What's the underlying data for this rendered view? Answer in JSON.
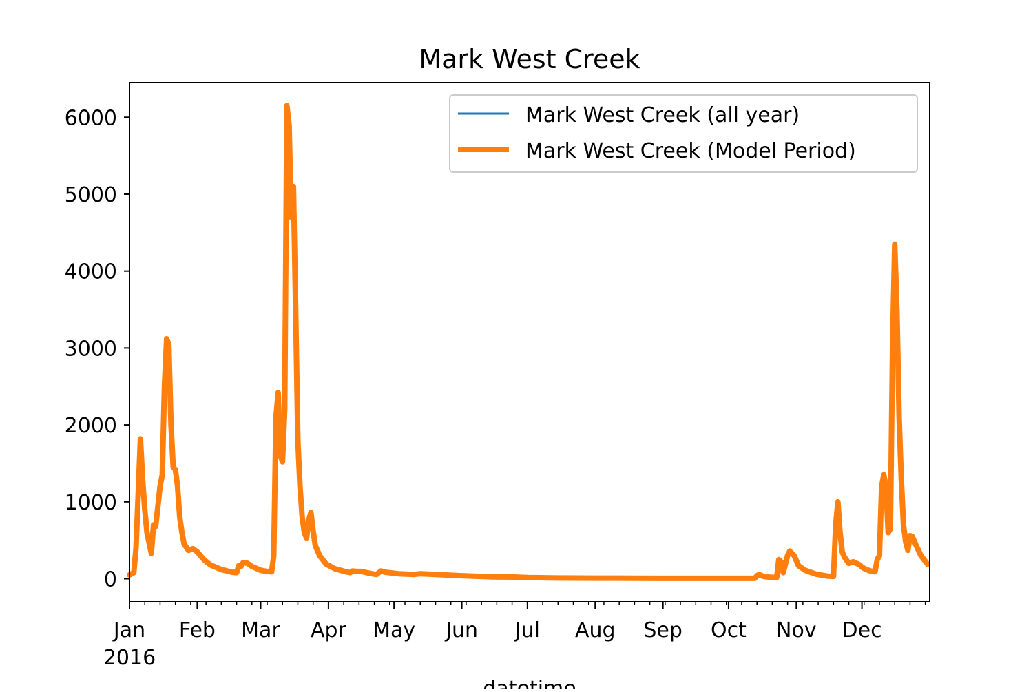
{
  "chart_data": {
    "type": "line",
    "title": "Mark West Creek",
    "xlabel": "datetime",
    "ylabel": "",
    "x_range": [
      "2016-01-01",
      "2016-12-31"
    ],
    "ylim": [
      -300,
      6450
    ],
    "yticks": [
      0,
      1000,
      2000,
      3000,
      4000,
      5000,
      6000
    ],
    "xticks": [
      {
        "date": "2016-01-01",
        "label": "Jan",
        "sublabel": "2016"
      },
      {
        "date": "2016-02-01",
        "label": "Feb"
      },
      {
        "date": "2016-03-01",
        "label": "Mar"
      },
      {
        "date": "2016-04-01",
        "label": "Apr"
      },
      {
        "date": "2016-05-01",
        "label": "May"
      },
      {
        "date": "2016-06-01",
        "label": "Jun"
      },
      {
        "date": "2016-07-01",
        "label": "Jul"
      },
      {
        "date": "2016-08-01",
        "label": "Aug"
      },
      {
        "date": "2016-09-01",
        "label": "Sep"
      },
      {
        "date": "2016-10-01",
        "label": "Oct"
      },
      {
        "date": "2016-11-01",
        "label": "Nov"
      },
      {
        "date": "2016-12-01",
        "label": "Dec"
      }
    ],
    "legend_position": "upper right",
    "series": [
      {
        "name": "Mark West Creek (all year)",
        "color": "#1f77b4",
        "points": [
          [
            "2016-01-01",
            50
          ],
          [
            "2016-01-03",
            80
          ],
          [
            "2016-01-04",
            400
          ],
          [
            "2016-01-06",
            1820
          ],
          [
            "2016-01-07",
            1300
          ],
          [
            "2016-01-08",
            900
          ],
          [
            "2016-01-09",
            600
          ],
          [
            "2016-01-11",
            330
          ],
          [
            "2016-01-12",
            700
          ],
          [
            "2016-01-13",
            680
          ],
          [
            "2016-01-15",
            1200
          ],
          [
            "2016-01-16",
            1350
          ],
          [
            "2016-01-17",
            2500
          ],
          [
            "2016-01-18",
            3120
          ],
          [
            "2016-01-19",
            3050
          ],
          [
            "2016-01-20",
            2000
          ],
          [
            "2016-01-21",
            1450
          ],
          [
            "2016-01-22",
            1420
          ],
          [
            "2016-01-23",
            1200
          ],
          [
            "2016-01-24",
            800
          ],
          [
            "2016-01-25",
            600
          ],
          [
            "2016-01-26",
            450
          ],
          [
            "2016-01-28",
            370
          ],
          [
            "2016-01-30",
            390
          ],
          [
            "2016-02-01",
            350
          ],
          [
            "2016-02-04",
            250
          ],
          [
            "2016-02-07",
            180
          ],
          [
            "2016-02-12",
            120
          ],
          [
            "2016-02-17",
            85
          ],
          [
            "2016-02-19",
            80
          ],
          [
            "2016-02-20",
            170
          ],
          [
            "2016-02-21",
            160
          ],
          [
            "2016-02-22",
            210
          ],
          [
            "2016-02-24",
            200
          ],
          [
            "2016-02-26",
            160
          ],
          [
            "2016-03-01",
            110
          ],
          [
            "2016-03-04",
            95
          ],
          [
            "2016-03-06",
            90
          ],
          [
            "2016-03-07",
            300
          ],
          [
            "2016-03-08",
            2100
          ],
          [
            "2016-03-09",
            2420
          ],
          [
            "2016-03-10",
            1600
          ],
          [
            "2016-03-11",
            1520
          ],
          [
            "2016-03-12",
            2200
          ],
          [
            "2016-03-13",
            6150
          ],
          [
            "2016-03-14",
            5900
          ],
          [
            "2016-03-15",
            4700
          ],
          [
            "2016-03-16",
            5100
          ],
          [
            "2016-03-17",
            3500
          ],
          [
            "2016-03-18",
            1800
          ],
          [
            "2016-03-19",
            1200
          ],
          [
            "2016-03-20",
            800
          ],
          [
            "2016-03-21",
            600
          ],
          [
            "2016-03-22",
            530
          ],
          [
            "2016-03-23",
            760
          ],
          [
            "2016-03-24",
            860
          ],
          [
            "2016-03-25",
            620
          ],
          [
            "2016-03-26",
            430
          ],
          [
            "2016-03-28",
            300
          ],
          [
            "2016-03-31",
            190
          ],
          [
            "2016-04-04",
            130
          ],
          [
            "2016-04-09",
            90
          ],
          [
            "2016-04-11",
            80
          ],
          [
            "2016-04-12",
            100
          ],
          [
            "2016-04-14",
            95
          ],
          [
            "2016-04-16",
            95
          ],
          [
            "2016-04-20",
            70
          ],
          [
            "2016-04-23",
            55
          ],
          [
            "2016-04-25",
            100
          ],
          [
            "2016-04-27",
            85
          ],
          [
            "2016-05-03",
            65
          ],
          [
            "2016-05-10",
            55
          ],
          [
            "2016-05-13",
            65
          ],
          [
            "2016-05-20",
            55
          ],
          [
            "2016-05-31",
            40
          ],
          [
            "2016-06-15",
            25
          ],
          [
            "2016-06-25",
            22
          ],
          [
            "2016-07-01",
            15
          ],
          [
            "2016-07-15",
            10
          ],
          [
            "2016-08-01",
            8
          ],
          [
            "2016-09-01",
            5
          ],
          [
            "2016-10-01",
            5
          ],
          [
            "2016-10-13",
            5
          ],
          [
            "2016-10-14",
            40
          ],
          [
            "2016-10-15",
            55
          ],
          [
            "2016-10-17",
            30
          ],
          [
            "2016-10-20",
            20
          ],
          [
            "2016-10-23",
            15
          ],
          [
            "2016-10-24",
            250
          ],
          [
            "2016-10-25",
            220
          ],
          [
            "2016-10-26",
            80
          ],
          [
            "2016-10-28",
            300
          ],
          [
            "2016-10-29",
            360
          ],
          [
            "2016-10-31",
            300
          ],
          [
            "2016-11-02",
            170
          ],
          [
            "2016-11-05",
            110
          ],
          [
            "2016-11-10",
            60
          ],
          [
            "2016-11-15",
            35
          ],
          [
            "2016-11-18",
            30
          ],
          [
            "2016-11-19",
            700
          ],
          [
            "2016-11-20",
            1000
          ],
          [
            "2016-11-21",
            600
          ],
          [
            "2016-11-22",
            350
          ],
          [
            "2016-11-23",
            280
          ],
          [
            "2016-11-25",
            200
          ],
          [
            "2016-11-27",
            220
          ],
          [
            "2016-11-30",
            180
          ],
          [
            "2016-12-01",
            150
          ],
          [
            "2016-12-03",
            120
          ],
          [
            "2016-12-05",
            100
          ],
          [
            "2016-12-07",
            90
          ],
          [
            "2016-12-08",
            250
          ],
          [
            "2016-12-09",
            300
          ],
          [
            "2016-12-10",
            1200
          ],
          [
            "2016-12-11",
            1350
          ],
          [
            "2016-12-12",
            1200
          ],
          [
            "2016-12-13",
            600
          ],
          [
            "2016-12-14",
            650
          ],
          [
            "2016-12-15",
            3000
          ],
          [
            "2016-12-16",
            4350
          ],
          [
            "2016-12-17",
            3500
          ],
          [
            "2016-12-18",
            2100
          ],
          [
            "2016-12-19",
            1300
          ],
          [
            "2016-12-20",
            700
          ],
          [
            "2016-12-21",
            480
          ],
          [
            "2016-12-22",
            370
          ],
          [
            "2016-12-23",
            560
          ],
          [
            "2016-12-24",
            550
          ],
          [
            "2016-12-26",
            420
          ],
          [
            "2016-12-28",
            300
          ],
          [
            "2016-12-31",
            190
          ]
        ]
      },
      {
        "name": "Mark West Creek (Model Period)",
        "color": "#ff7f0e",
        "same_as": "Mark West Creek (all year)"
      }
    ]
  }
}
